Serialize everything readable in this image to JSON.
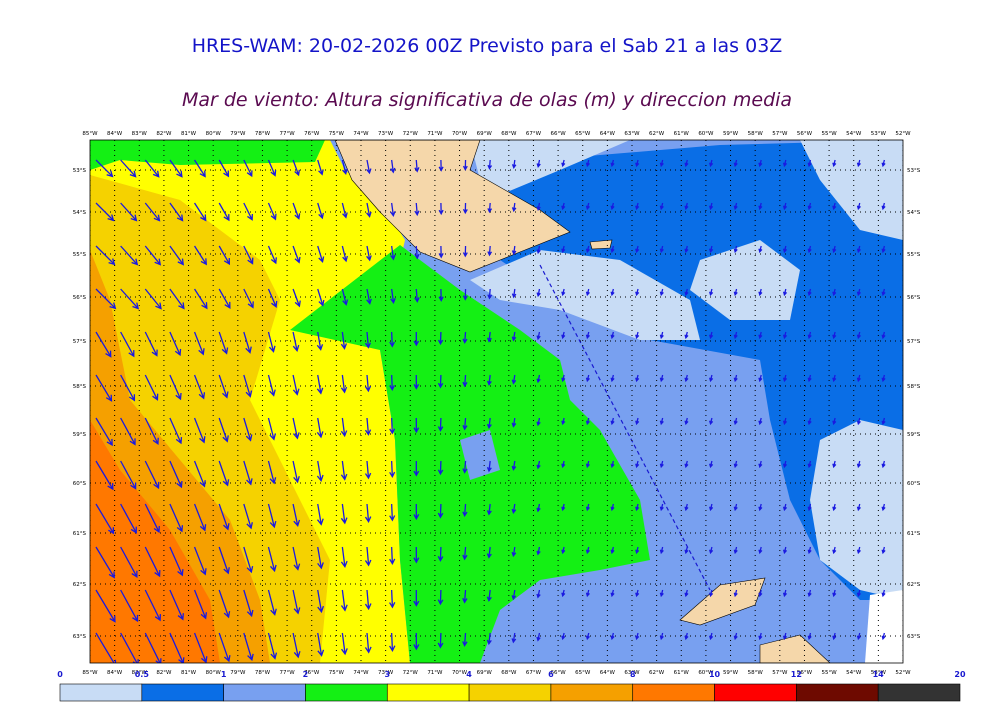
{
  "title": "HRES-WAM: 20-02-2026 00Z Previsto para el Sab 21 a las 03Z",
  "subtitle": "Mar de viento: Altura significativa de olas (m) y direccion media",
  "lon_labels": [
    "85°W",
    "84°W",
    "83°W",
    "82°W",
    "81°W",
    "80°W",
    "79°W",
    "78°W",
    "77°W",
    "76°W",
    "75°W",
    "74°W",
    "73°W",
    "72°W",
    "71°W",
    "70°W",
    "69°W",
    "68°W",
    "67°W",
    "66°W",
    "65°W",
    "64°W",
    "63°W",
    "62°W",
    "61°W",
    "60°W",
    "59°W",
    "58°W",
    "57°W",
    "56°W",
    "55°W",
    "54°W",
    "53°W",
    "52°W"
  ],
  "lat_labels": [
    "53°S",
    "54°S",
    "55°S",
    "56°S",
    "57°S",
    "58°S",
    "59°S",
    "60°S",
    "61°S",
    "62°S",
    "63°S"
  ],
  "colorbar": {
    "labels": [
      0,
      0.5,
      1,
      2,
      3,
      4,
      6,
      8,
      10,
      12,
      14,
      20
    ],
    "colors": [
      "#c8dcf5",
      "#0a6ee6",
      "#78a0f0",
      "#14f014",
      "#ffff00",
      "#f5d200",
      "#f5a000",
      "#ff7800",
      "#ff0000",
      "#6e0a00",
      "#333333"
    ]
  }
}
